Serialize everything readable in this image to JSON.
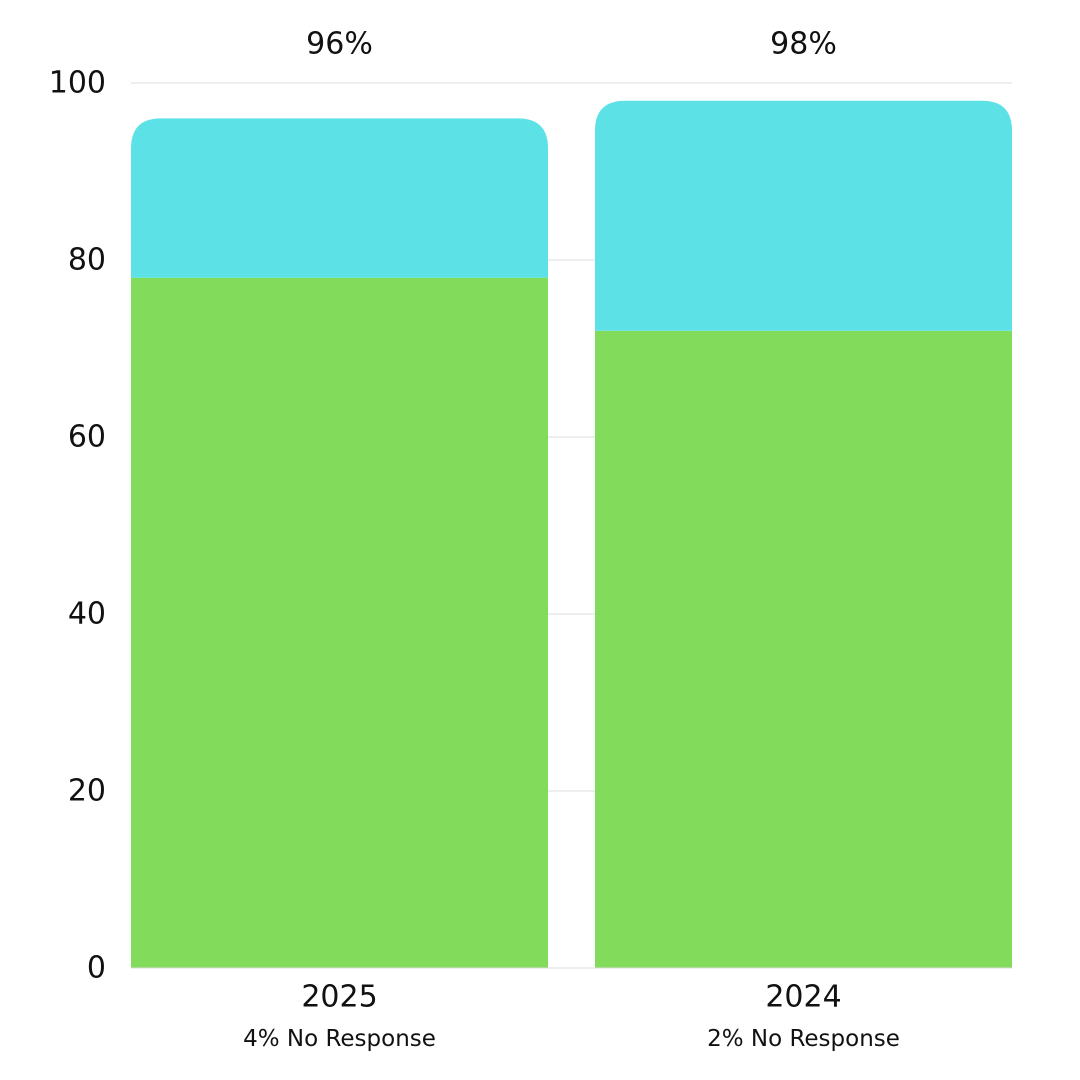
{
  "chart_data": {
    "type": "bar",
    "stacked": true,
    "categories": [
      "2025",
      "2024"
    ],
    "category_sublabels": [
      "4% No Response",
      "2% No Response"
    ],
    "totals_labels": [
      "96%",
      "98%"
    ],
    "series": [
      {
        "values": [
          78,
          72
        ],
        "color": "#82DB5A"
      },
      {
        "values": [
          18,
          26
        ],
        "color": "#5CE1E6"
      }
    ],
    "yticks": [
      0,
      20,
      40,
      60,
      80,
      100
    ],
    "ylim": [
      0,
      100
    ],
    "grid": true,
    "legend": "none"
  }
}
